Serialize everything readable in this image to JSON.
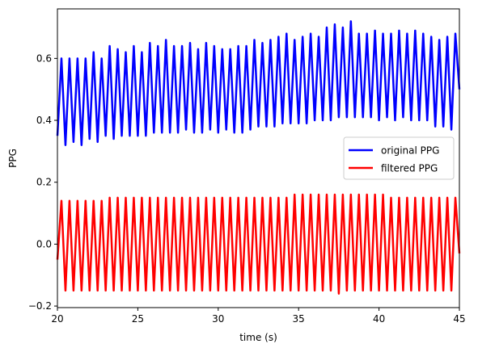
{
  "chart_data": {
    "type": "line",
    "title": "",
    "xlabel": "time (s)",
    "ylabel": "PPG",
    "xlim": [
      20,
      45
    ],
    "ylim": [
      -0.205,
      0.76
    ],
    "xticks": [
      20,
      25,
      30,
      35,
      40,
      45
    ],
    "yticks": [
      -0.2,
      0.0,
      0.2,
      0.4,
      0.6
    ],
    "ytick_labels": [
      "−0.2",
      "0.0",
      "0.2",
      "0.4",
      "0.6"
    ],
    "grid": false,
    "legend_position": "center-right",
    "x": [
      20.0,
      20.25,
      20.5,
      20.75,
      21.0,
      21.25,
      21.5,
      21.75,
      22.0,
      22.25,
      22.5,
      22.75,
      23.0,
      23.25,
      23.5,
      23.75,
      24.0,
      24.25,
      24.5,
      24.75,
      25.0,
      25.25,
      25.5,
      25.75,
      26.0,
      26.25,
      26.5,
      26.75,
      27.0,
      27.25,
      27.5,
      27.75,
      28.0,
      28.25,
      28.5,
      28.75,
      29.0,
      29.25,
      29.5,
      29.75,
      30.0,
      30.25,
      30.5,
      30.75,
      31.0,
      31.25,
      31.5,
      31.75,
      32.0,
      32.25,
      32.5,
      32.75,
      33.0,
      33.25,
      33.5,
      33.75,
      34.0,
      34.25,
      34.5,
      34.75,
      35.0,
      35.25,
      35.5,
      35.75,
      36.0,
      36.25,
      36.5,
      36.75,
      37.0,
      37.25,
      37.5,
      37.75,
      38.0,
      38.25,
      38.5,
      38.75,
      39.0,
      39.25,
      39.5,
      39.75,
      40.0,
      40.25,
      40.5,
      40.75,
      41.0,
      41.25,
      41.5,
      41.75,
      42.0,
      42.25,
      42.5,
      42.75,
      43.0,
      43.25,
      43.5,
      43.75,
      44.0,
      44.25,
      44.5,
      44.75,
      45.0
    ],
    "series": [
      {
        "name": "original PPG",
        "color": "#0000ff",
        "values": [
          0.35,
          0.6,
          0.32,
          0.6,
          0.33,
          0.6,
          0.32,
          0.6,
          0.34,
          0.62,
          0.33,
          0.6,
          0.35,
          0.64,
          0.34,
          0.63,
          0.35,
          0.62,
          0.35,
          0.64,
          0.35,
          0.62,
          0.35,
          0.65,
          0.36,
          0.64,
          0.36,
          0.66,
          0.36,
          0.64,
          0.36,
          0.64,
          0.37,
          0.65,
          0.36,
          0.63,
          0.36,
          0.65,
          0.37,
          0.64,
          0.36,
          0.63,
          0.37,
          0.63,
          0.36,
          0.64,
          0.36,
          0.64,
          0.37,
          0.66,
          0.38,
          0.65,
          0.38,
          0.66,
          0.38,
          0.67,
          0.39,
          0.68,
          0.39,
          0.66,
          0.39,
          0.67,
          0.39,
          0.68,
          0.4,
          0.67,
          0.4,
          0.7,
          0.4,
          0.71,
          0.41,
          0.7,
          0.41,
          0.72,
          0.41,
          0.68,
          0.41,
          0.68,
          0.41,
          0.69,
          0.4,
          0.68,
          0.41,
          0.68,
          0.4,
          0.69,
          0.41,
          0.68,
          0.4,
          0.69,
          0.4,
          0.68,
          0.4,
          0.67,
          0.38,
          0.66,
          0.38,
          0.67,
          0.37,
          0.68,
          0.5
        ]
      },
      {
        "name": "filtered PPG",
        "color": "#ff0000",
        "values": [
          -0.05,
          0.14,
          -0.15,
          0.14,
          -0.15,
          0.14,
          -0.15,
          0.14,
          -0.15,
          0.14,
          -0.15,
          0.14,
          -0.15,
          0.15,
          -0.15,
          0.15,
          -0.15,
          0.15,
          -0.15,
          0.15,
          -0.15,
          0.15,
          -0.15,
          0.15,
          -0.15,
          0.15,
          -0.15,
          0.15,
          -0.15,
          0.15,
          -0.15,
          0.15,
          -0.15,
          0.15,
          -0.15,
          0.15,
          -0.15,
          0.15,
          -0.15,
          0.15,
          -0.15,
          0.15,
          -0.15,
          0.15,
          -0.15,
          0.15,
          -0.15,
          0.15,
          -0.15,
          0.15,
          -0.15,
          0.15,
          -0.15,
          0.15,
          -0.15,
          0.15,
          -0.15,
          0.15,
          -0.15,
          0.16,
          -0.15,
          0.16,
          -0.15,
          0.16,
          -0.15,
          0.16,
          -0.15,
          0.16,
          -0.15,
          0.16,
          -0.16,
          0.16,
          -0.15,
          0.16,
          -0.15,
          0.16,
          -0.15,
          0.16,
          -0.15,
          0.16,
          -0.15,
          0.16,
          -0.15,
          0.15,
          -0.15,
          0.15,
          -0.15,
          0.15,
          -0.15,
          0.15,
          -0.15,
          0.15,
          -0.15,
          0.15,
          -0.15,
          0.15,
          -0.15,
          0.15,
          -0.15,
          0.15,
          -0.03
        ]
      }
    ]
  }
}
